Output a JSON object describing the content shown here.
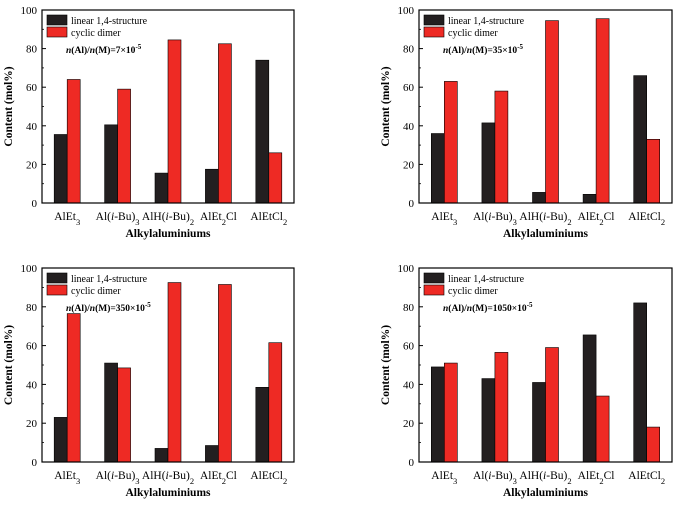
{
  "colors": {
    "linear": "#231f20",
    "cyclic": "#ee2a24"
  },
  "chart_data": [
    {
      "type": "bar",
      "annotation": "n(Al)/n(M)=7×10⁻⁵",
      "xlabel": "Alkylaluminiums",
      "ylabel": "Content (mol%)",
      "ylim": [
        0,
        100
      ],
      "yticks": [
        "0",
        "20",
        "40",
        "60",
        "80",
        "100"
      ],
      "categories": [
        "AlEt₃",
        "Al(i-Bu)₃",
        "AlH(i-Bu)₂",
        "AlEt₂Cl",
        "AlEtCl₂"
      ],
      "legend_position": "top-left",
      "series": [
        {
          "name": "linear 1,4-structure",
          "values": [
            35.5,
            40.5,
            15.5,
            17.5,
            74
          ]
        },
        {
          "name": "cyclic dimer",
          "values": [
            64,
            59,
            84.5,
            82.5,
            26
          ]
        }
      ]
    },
    {
      "type": "bar",
      "annotation": "n(Al)/n(M)=35×10⁻⁵",
      "xlabel": "Alkylaluminiums",
      "ylabel": "Content (mol%)",
      "ylim": [
        0,
        100
      ],
      "yticks": [
        "0",
        "20",
        "40",
        "60",
        "80",
        "100"
      ],
      "categories": [
        "AlEt₃",
        "Al(i-Bu)₃",
        "AlH(i-Bu)₂",
        "AlEt₂Cl",
        "AlEtCl₂"
      ],
      "legend_position": "top-left",
      "series": [
        {
          "name": "linear 1,4-structure",
          "values": [
            36,
            41.5,
            5.5,
            4.5,
            66
          ]
        },
        {
          "name": "cyclic dimer",
          "values": [
            63,
            58,
            94.5,
            95.5,
            33
          ]
        }
      ]
    },
    {
      "type": "bar",
      "annotation": "n(Al)/n(M)=350×10⁻⁵",
      "xlabel": "Alkylaluminiums",
      "ylabel": "Content (mol%)",
      "ylim": [
        0,
        100
      ],
      "yticks": [
        "0",
        "20",
        "40",
        "60",
        "80",
        "100"
      ],
      "categories": [
        "AlEt₃",
        "Al(i-Bu)₃",
        "AlH(i-Bu)₂",
        "AlEt₂Cl",
        "AlEtCl₂"
      ],
      "legend_position": "top-left",
      "series": [
        {
          "name": "linear 1,4-structure",
          "values": [
            23,
            51,
            7,
            8.5,
            38.5
          ]
        },
        {
          "name": "cyclic dimer",
          "values": [
            76.5,
            48.5,
            92.5,
            91.5,
            61.5
          ]
        }
      ]
    },
    {
      "type": "bar",
      "annotation": "n(Al)/n(M)=1050×10⁻⁵",
      "xlabel": "Alkylaluminiums",
      "ylabel": "Content (mol%)",
      "ylim": [
        0,
        100
      ],
      "yticks": [
        "0",
        "20",
        "40",
        "60",
        "80",
        "100"
      ],
      "categories": [
        "AlEt₃",
        "Al(i-Bu)₃",
        "AlH(i-Bu)₂",
        "AlEt₂Cl",
        "AlEtCl₂"
      ],
      "legend_position": "top-left",
      "series": [
        {
          "name": "linear 1,4-structure",
          "values": [
            49,
            43,
            41,
            65.5,
            82
          ]
        },
        {
          "name": "cyclic dimer",
          "values": [
            51,
            56.5,
            59,
            34,
            18
          ]
        }
      ]
    }
  ]
}
